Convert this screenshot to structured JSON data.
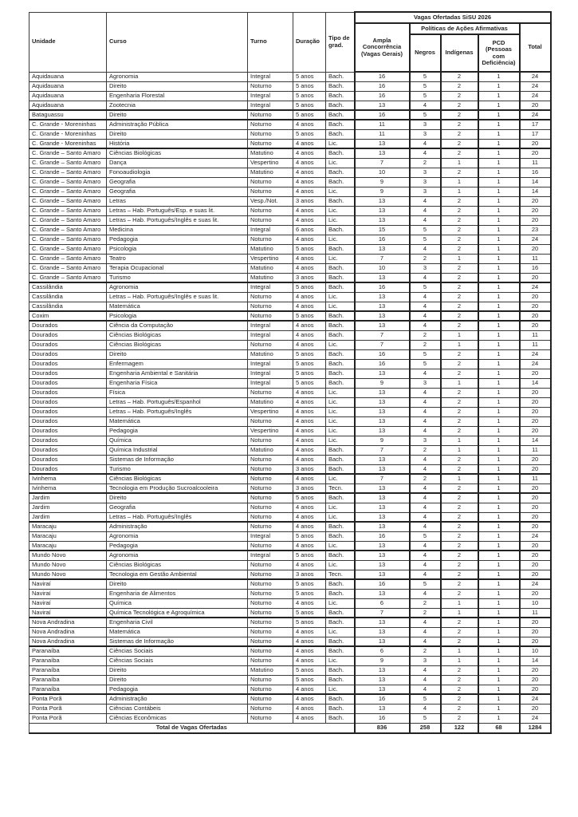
{
  "table": {
    "group_header": "Vagas Ofertadas SiSU 2026",
    "affirmative_header": "Políticas de Ações Afirmativas",
    "columns": {
      "unidade": "Unidade",
      "curso": "Curso",
      "turno": "Turno",
      "duracao": "Duração",
      "tipo_grad": "Tipo de grad.",
      "ampla": "Ampla Concorrência (Vagas Gerais)",
      "negros": "Negros",
      "indigenas": "Indígenas",
      "pcd": "PCD (Pessoas com Deficiência)",
      "total": "Total"
    },
    "rows": [
      [
        "Aquidauana",
        "Agronomia",
        "Integral",
        "5 anos",
        "Bach.",
        16,
        5,
        2,
        1,
        24
      ],
      [
        "Aquidauana",
        "Direito",
        "Noturno",
        "5 anos",
        "Bach.",
        16,
        5,
        2,
        1,
        24
      ],
      [
        "Aquidauana",
        "Engenharia Florestal",
        "Integral",
        "5 anos",
        "Bach.",
        16,
        5,
        2,
        1,
        24
      ],
      [
        "Aquidauana",
        "Zootecnia",
        "Integral",
        "5 anos",
        "Bach.",
        13,
        4,
        2,
        1,
        20
      ],
      [
        "Bataguassu",
        "Direito",
        "Noturno",
        "5 anos",
        "Bach.",
        16,
        5,
        2,
        1,
        24
      ],
      [
        "C. Grande - Moreninhas",
        "Administração Pública",
        "Noturno",
        "4 anos",
        "Bach.",
        11,
        3,
        2,
        1,
        17
      ],
      [
        "C. Grande - Moreninhas",
        "Direito",
        "Noturno",
        "5 anos",
        "Bach.",
        11,
        3,
        2,
        1,
        17
      ],
      [
        "C. Grande - Moreninhas",
        "História",
        "Noturno",
        "4 anos",
        "Lic.",
        13,
        4,
        2,
        1,
        20
      ],
      [
        "C. Grande – Santo Amaro",
        "Ciências Biológicas",
        "Matutino",
        "4 anos",
        "Bach.",
        13,
        4,
        2,
        1,
        20
      ],
      [
        "C. Grande – Santo Amaro",
        "Dança",
        "Vespertino",
        "4 anos",
        "Lic.",
        7,
        2,
        1,
        1,
        11
      ],
      [
        "C. Grande – Santo Amaro",
        "Fonoaudiologia",
        "Matutino",
        "4 anos",
        "Bach.",
        10,
        3,
        2,
        1,
        16
      ],
      [
        "C. Grande – Santo Amaro",
        "Geografia",
        "Noturno",
        "4 anos",
        "Bach.",
        9,
        3,
        1,
        1,
        14
      ],
      [
        "C. Grande – Santo Amaro",
        "Geografia",
        "Noturno",
        "4 anos",
        "Lic.",
        9,
        3,
        1,
        1,
        14
      ],
      [
        "C. Grande – Santo Amaro",
        "Letras",
        "Vesp./Not.",
        "3 anos",
        "Bach.",
        13,
        4,
        2,
        1,
        20
      ],
      [
        "C. Grande – Santo Amaro",
        "Letras – Hab. Português/Esp. e suas lit.",
        "Noturno",
        "4 anos",
        "Lic.",
        13,
        4,
        2,
        1,
        20
      ],
      [
        "C. Grande – Santo Amaro",
        "Letras – Hab. Português/Inglês e suas lit.",
        "Noturno",
        "4 anos",
        "Lic.",
        13,
        4,
        2,
        1,
        20
      ],
      [
        "C. Grande – Santo Amaro",
        "Medicina",
        "Integral",
        "6 anos",
        "Bach.",
        15,
        5,
        2,
        1,
        23
      ],
      [
        "C. Grande – Santo Amaro",
        "Pedagogia",
        "Noturno",
        "4 anos",
        "Lic.",
        16,
        5,
        2,
        1,
        24
      ],
      [
        "C. Grande – Santo Amaro",
        "Psicologia",
        "Matutino",
        "5 anos",
        "Bach.",
        13,
        4,
        2,
        1,
        20
      ],
      [
        "C. Grande – Santo Amaro",
        "Teatro",
        "Vespertino",
        "4 anos",
        "Lic.",
        7,
        2,
        1,
        1,
        11
      ],
      [
        "C. Grande – Santo Amaro",
        "Terapia Ocupacional",
        "Matutino",
        "4 anos",
        "Bach.",
        10,
        3,
        2,
        1,
        16
      ],
      [
        "C. Grande – Santo Amaro",
        "Turismo",
        "Matutino",
        "3 anos",
        "Bach.",
        13,
        4,
        2,
        1,
        20
      ],
      [
        "Cassilândia",
        "Agronomia",
        "Integral",
        "5 anos",
        "Bach.",
        16,
        5,
        2,
        1,
        24
      ],
      [
        "Cassilândia",
        "Letras – Hab. Português/Inglês e suas lit.",
        "Noturno",
        "4 anos",
        "Lic.",
        13,
        4,
        2,
        1,
        20
      ],
      [
        "Cassilândia",
        "Matemática",
        "Noturno",
        "4 anos",
        "Lic.",
        13,
        4,
        2,
        1,
        20
      ],
      [
        "Coxim",
        "Psicologia",
        "Noturno",
        "5 anos",
        "Bach.",
        13,
        4,
        2,
        1,
        20
      ],
      [
        "Dourados",
        "Ciência da Computação",
        "Integral",
        "4 anos",
        "Bach.",
        13,
        4,
        2,
        1,
        20
      ],
      [
        "Dourados",
        "Ciências Biológicas",
        "Integral",
        "4 anos",
        "Bach.",
        7,
        2,
        1,
        1,
        11
      ],
      [
        "Dourados",
        "Ciências Biológicas",
        "Noturno",
        "4 anos",
        "Lic.",
        7,
        2,
        1,
        1,
        11
      ],
      [
        "Dourados",
        "Direito",
        "Matutino",
        "5 anos",
        "Bach.",
        16,
        5,
        2,
        1,
        24
      ],
      [
        "Dourados",
        "Enfermagem",
        "Integral",
        "5 anos",
        "Bach.",
        16,
        5,
        2,
        1,
        24
      ],
      [
        "Dourados",
        "Engenharia Ambiental e Sanitária",
        "Integral",
        "5 anos",
        "Bach.",
        13,
        4,
        2,
        1,
        20
      ],
      [
        "Dourados",
        "Engenharia Física",
        "Integral",
        "5 anos",
        "Bach.",
        9,
        3,
        1,
        1,
        14
      ],
      [
        "Dourados",
        "Física",
        "Noturno",
        "4 anos",
        "Lic.",
        13,
        4,
        2,
        1,
        20
      ],
      [
        "Dourados",
        "Letras – Hab. Português/Espanhol",
        "Matutino",
        "4 anos",
        "Lic.",
        13,
        4,
        2,
        1,
        20
      ],
      [
        "Dourados",
        "Letras – Hab. Português/Inglês",
        "Vespertino",
        "4 anos",
        "Lic.",
        13,
        4,
        2,
        1,
        20
      ],
      [
        "Dourados",
        "Matemática",
        "Noturno",
        "4 anos",
        "Lic.",
        13,
        4,
        2,
        1,
        20
      ],
      [
        "Dourados",
        "Pedagogia",
        "Vespertino",
        "4 anos",
        "Lic.",
        13,
        4,
        2,
        1,
        20
      ],
      [
        "Dourados",
        "Química",
        "Noturno",
        "4 anos",
        "Lic.",
        9,
        3,
        1,
        1,
        14
      ],
      [
        "Dourados",
        "Química Industrial",
        "Matutino",
        "4 anos",
        "Bach.",
        7,
        2,
        1,
        1,
        11
      ],
      [
        "Dourados",
        "Sistemas de Informação",
        "Noturno",
        "4 anos",
        "Bach.",
        13,
        4,
        2,
        1,
        20
      ],
      [
        "Dourados",
        "Turismo",
        "Noturno",
        "3 anos",
        "Bach.",
        13,
        4,
        2,
        1,
        20
      ],
      [
        "Ivinhema",
        "Ciências Biológicas",
        "Noturno",
        "4 anos",
        "Lic.",
        7,
        2,
        1,
        1,
        11
      ],
      [
        "Ivinhema",
        "Tecnologia em Produção Sucroalcooleira",
        "Noturno",
        "3 anos",
        "Tecn.",
        13,
        4,
        2,
        1,
        20
      ],
      [
        "Jardim",
        "Direito",
        "Noturno",
        "5 anos",
        "Bach.",
        13,
        4,
        2,
        1,
        20
      ],
      [
        "Jardim",
        "Geografia",
        "Noturno",
        "4 anos",
        "Lic.",
        13,
        4,
        2,
        1,
        20
      ],
      [
        "Jardim",
        "Letras – Hab. Português/Inglês",
        "Noturno",
        "4 anos",
        "Lic.",
        13,
        4,
        2,
        1,
        20
      ],
      [
        "Maracaju",
        "Administração",
        "Noturno",
        "4 anos",
        "Bach.",
        13,
        4,
        2,
        1,
        20
      ],
      [
        "Maracaju",
        "Agronomia",
        "Integral",
        "5 anos",
        "Bach.",
        16,
        5,
        2,
        1,
        24
      ],
      [
        "Maracaju",
        "Pedagogia",
        "Noturno",
        "4 anos",
        "Lic.",
        13,
        4,
        2,
        1,
        20
      ],
      [
        "Mundo Novo",
        "Agronomia",
        "Integral",
        "5 anos",
        "Bach.",
        13,
        4,
        2,
        1,
        20
      ],
      [
        "Mundo Novo",
        "Ciências Biológicas",
        "Noturno",
        "4 anos",
        "Lic.",
        13,
        4,
        2,
        1,
        20
      ],
      [
        "Mundo Novo",
        "Tecnologia em Gestão Ambiental",
        "Noturno",
        "3 anos",
        "Tecn.",
        13,
        4,
        2,
        1,
        20
      ],
      [
        "Naviraí",
        "Direito",
        "Noturno",
        "5 anos",
        "Bach.",
        16,
        5,
        2,
        1,
        24
      ],
      [
        "Naviraí",
        "Engenharia de Alimentos",
        "Noturno",
        "5 anos",
        "Bach.",
        13,
        4,
        2,
        1,
        20
      ],
      [
        "Naviraí",
        "Química",
        "Noturno",
        "4 anos",
        "Lic.",
        6,
        2,
        1,
        1,
        10
      ],
      [
        "Naviraí",
        "Química Tecnológica e Agroquímica",
        "Noturno",
        "5 anos",
        "Bach.",
        7,
        2,
        1,
        1,
        11
      ],
      [
        "Nova Andradina",
        "Engenharia Civil",
        "Noturno",
        "5 anos",
        "Bach.",
        13,
        4,
        2,
        1,
        20
      ],
      [
        "Nova Andradina",
        "Matemática",
        "Noturno",
        "4 anos",
        "Lic.",
        13,
        4,
        2,
        1,
        20
      ],
      [
        "Nova Andradina",
        "Sistemas de Informação",
        "Noturno",
        "4 anos",
        "Bach.",
        13,
        4,
        2,
        1,
        20
      ],
      [
        "Paranaíba",
        "Ciências Sociais",
        "Noturno",
        "4 anos",
        "Bach.",
        6,
        2,
        1,
        1,
        10
      ],
      [
        "Paranaíba",
        "Ciências Sociais",
        "Noturno",
        "4 anos",
        "Lic.",
        9,
        3,
        1,
        1,
        14
      ],
      [
        "Paranaíba",
        "Direito",
        "Matutino",
        "5 anos",
        "Bach.",
        13,
        4,
        2,
        1,
        20
      ],
      [
        "Paranaíba",
        "Direito",
        "Noturno",
        "5 anos",
        "Bach.",
        13,
        4,
        2,
        1,
        20
      ],
      [
        "Paranaíba",
        "Pedagogia",
        "Noturno",
        "4 anos",
        "Lic.",
        13,
        4,
        2,
        1,
        20
      ],
      [
        "Ponta Porã",
        "Administração",
        "Noturno",
        "4 anos",
        "Bach.",
        16,
        5,
        2,
        1,
        24
      ],
      [
        "Ponta Porã",
        "Ciências Contábeis",
        "Noturno",
        "4 anos",
        "Bach.",
        13,
        4,
        2,
        1,
        20
      ],
      [
        "Ponta Porã",
        "Ciências Econômicas",
        "Noturno",
        "4 anos",
        "Bach.",
        16,
        5,
        2,
        1,
        24
      ]
    ],
    "footer": {
      "label": "Total de Vagas Ofertadas",
      "ampla": "836",
      "negros": "258",
      "indigenas": "122",
      "pcd": "68",
      "total": "1284"
    }
  }
}
